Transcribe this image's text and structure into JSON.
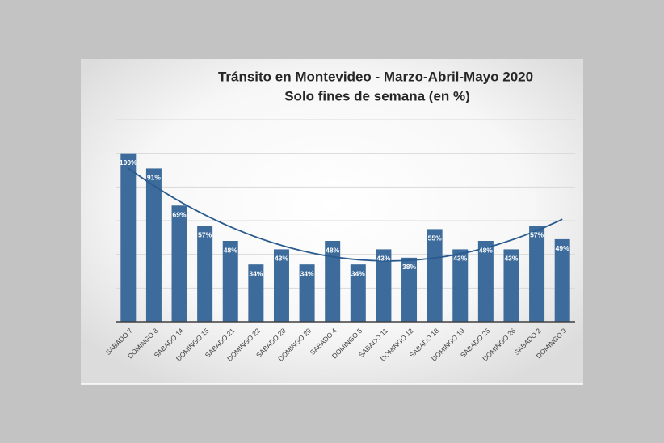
{
  "chart_data": {
    "type": "bar",
    "title": "Tránsito en Montevideo - Marzo-Abril-Mayo 2020",
    "subtitle": "Solo fines de semana (en %)",
    "categories": [
      "SABADO 7",
      "DOMINGO 8",
      "SABADO 14",
      "DOMINGO 15",
      "SABADO 21",
      "DOMINGO 22",
      "SABADO 28",
      "DOMINGO 29",
      "SABADO 4",
      "DOMINGO 5",
      "SABADO 11",
      "DOMINGO 12",
      "SABADO 18",
      "DOMINGO 19",
      "SABADO 25",
      "DOMINGO 26",
      "SABADO 2",
      "DOMINGO 3"
    ],
    "values": [
      100,
      91,
      69,
      57,
      48,
      34,
      43,
      34,
      48,
      34,
      43,
      38,
      55,
      43,
      48,
      43,
      57,
      49
    ],
    "value_labels": [
      "100%",
      "91%",
      "69%",
      "57%",
      "48%",
      "34%",
      "43%",
      "34%",
      "48%",
      "34%",
      "43%",
      "38%",
      "55%",
      "43%",
      "48%",
      "43%",
      "57%",
      "49%"
    ],
    "color": "#3d6c9c",
    "ylim": [
      0,
      120
    ],
    "yticks": [
      0,
      20,
      40,
      60,
      80,
      100,
      120
    ],
    "grid": true,
    "trendline": {
      "type": "polynomial",
      "order": 2,
      "color": "#2a5a8e"
    }
  }
}
